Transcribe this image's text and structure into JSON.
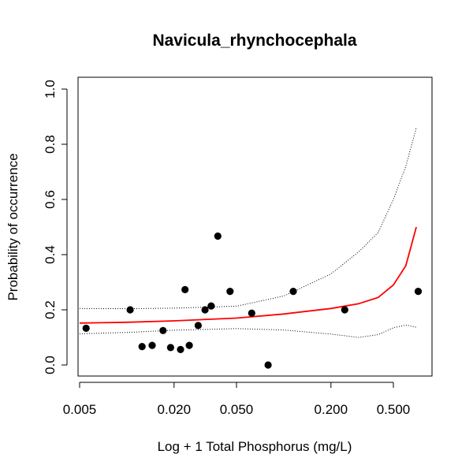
{
  "chart_data": {
    "type": "scatter",
    "title": "Navicula_rhynchocephala",
    "xlabel": "Log + 1 Total Phosphorus (mg/L)",
    "ylabel": "Probability of occurrence",
    "xscale": "log",
    "xlim": [
      0.005,
      0.85
    ],
    "ylim": [
      0,
      1
    ],
    "xticks": [
      0.005,
      0.02,
      0.05,
      0.2,
      0.5
    ],
    "xtick_labels": [
      "0.005",
      "0.020",
      "0.050",
      "0.200",
      "0.500"
    ],
    "yticks": [
      0.0,
      0.2,
      0.4,
      0.6,
      0.8,
      1.0
    ],
    "ytick_labels": [
      "0.0",
      "0.2",
      "0.4",
      "0.6",
      "0.8",
      "1.0"
    ],
    "grid": false,
    "points": {
      "color": "#000000",
      "x": [
        0.0055,
        0.0105,
        0.0125,
        0.0145,
        0.017,
        0.019,
        0.022,
        0.0235,
        0.025,
        0.0285,
        0.0315,
        0.0345,
        0.038,
        0.0455,
        0.0625,
        0.0795,
        0.115,
        0.245,
        0.72
      ],
      "y": [
        0.133,
        0.2,
        0.067,
        0.071,
        0.125,
        0.063,
        0.056,
        0.273,
        0.071,
        0.143,
        0.2,
        0.214,
        0.467,
        0.267,
        0.188,
        0.0,
        0.267,
        0.2,
        0.267
      ]
    },
    "fit": {
      "color": "#ff0000",
      "x": [
        0.005,
        0.01,
        0.02,
        0.05,
        0.1,
        0.2,
        0.3,
        0.4,
        0.5,
        0.6,
        0.7
      ],
      "y": [
        0.152,
        0.155,
        0.16,
        0.17,
        0.185,
        0.205,
        0.222,
        0.245,
        0.29,
        0.36,
        0.5
      ]
    },
    "upper_ci": {
      "color": "#000000",
      "style": "dotted",
      "x": [
        0.005,
        0.01,
        0.02,
        0.05,
        0.1,
        0.2,
        0.3,
        0.4,
        0.5,
        0.6,
        0.7
      ],
      "y": [
        0.205,
        0.204,
        0.206,
        0.213,
        0.25,
        0.33,
        0.41,
        0.48,
        0.6,
        0.72,
        0.86
      ]
    },
    "lower_ci": {
      "color": "#000000",
      "style": "dotted",
      "x": [
        0.005,
        0.01,
        0.02,
        0.05,
        0.1,
        0.2,
        0.3,
        0.4,
        0.5,
        0.6,
        0.7
      ],
      "y": [
        0.113,
        0.118,
        0.126,
        0.132,
        0.127,
        0.112,
        0.1,
        0.11,
        0.135,
        0.145,
        0.137
      ]
    }
  }
}
